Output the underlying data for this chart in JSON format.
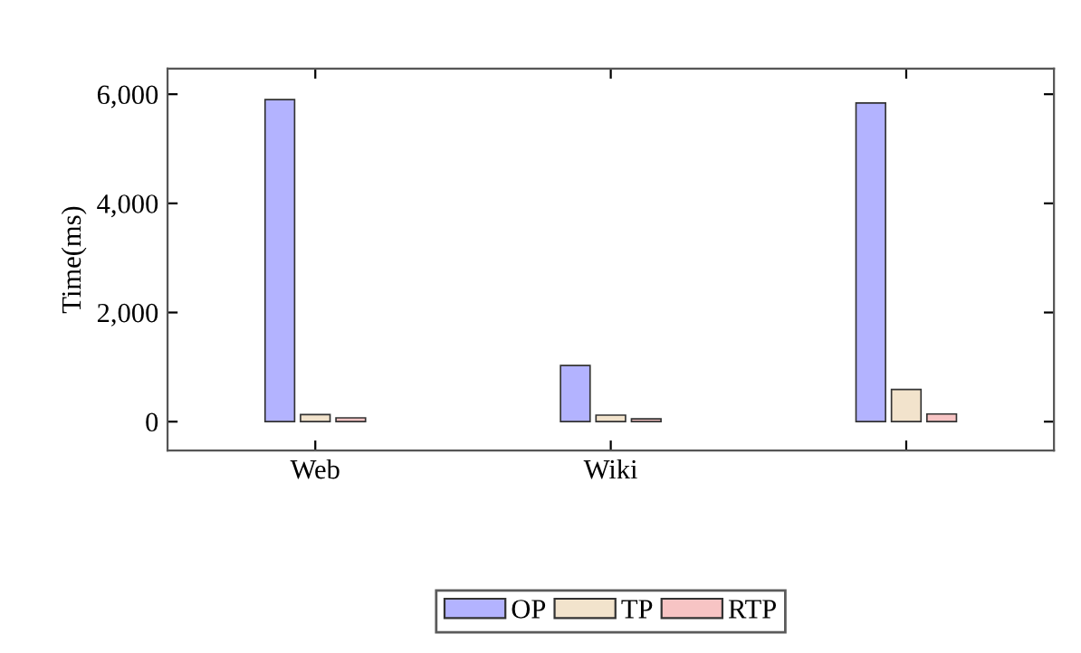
{
  "chart_data": {
    "type": "bar",
    "ylabel": "Time(ms)",
    "categories": [
      "Web",
      "Wiki",
      null
    ],
    "series": [
      {
        "name": "OP",
        "color": "#b3b3ff",
        "values": [
          5900,
          1030,
          5840
        ]
      },
      {
        "name": "TP",
        "color": "#f2e3cc",
        "values": [
          130,
          120,
          590
        ]
      },
      {
        "name": "RTP",
        "color": "#f7c4c4",
        "values": [
          70,
          50,
          140
        ]
      }
    ],
    "ylim": [
      -530,
      6470
    ],
    "yticks": [
      {
        "value": 0,
        "label": "0"
      },
      {
        "value": 2000,
        "label": "2,000"
      },
      {
        "value": 4000,
        "label": "4,000"
      },
      {
        "value": 6000,
        "label": "6,000"
      }
    ],
    "grid": false,
    "legend": "bottom"
  }
}
